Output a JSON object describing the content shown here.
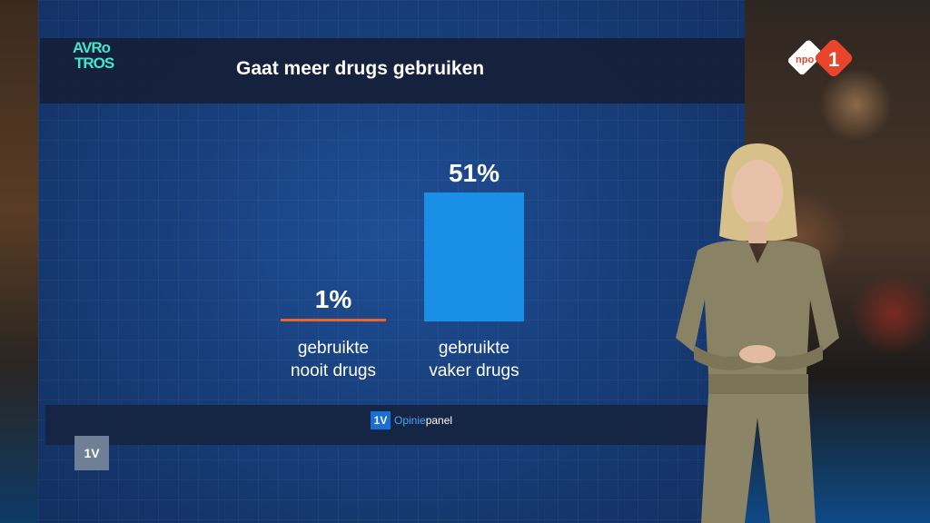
{
  "broadcast": {
    "brand_logo": "AVROTROS",
    "brand_logo_line1": "AVRo",
    "brand_logo_line2": "TROS",
    "channel_logo": "npo 1",
    "channel_logo_text": "npo",
    "channel_logo_num": "1",
    "corner_logo": "1V",
    "brand_color": "#3fe8c9",
    "channel_color": "#e8452c"
  },
  "chart_data": {
    "type": "bar",
    "title": "Gaat meer drugs gebruiken",
    "categories": [
      "gebruikte nooit drugs",
      "gebruikte vaker drugs"
    ],
    "category_lines": [
      [
        "gebruikte",
        "nooit drugs"
      ],
      [
        "gebruikte",
        "vaker drugs"
      ]
    ],
    "values": [
      1,
      51
    ],
    "value_labels": [
      "1%",
      "51%"
    ],
    "colors": [
      "#e8652c",
      "#1a8fe8"
    ],
    "ylim": [
      0,
      51
    ],
    "xlabel": "",
    "ylabel": "",
    "grid": false
  },
  "source": {
    "badge": "1V",
    "name_part1": "Opinie",
    "name_part2": "panel"
  }
}
